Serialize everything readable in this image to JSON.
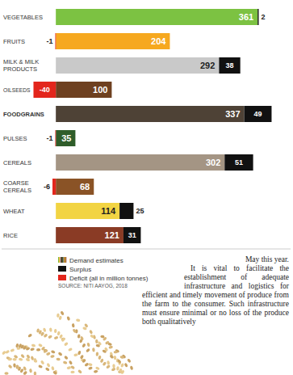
{
  "chart_data": {
    "type": "bar",
    "orientation": "horizontal",
    "stacked": true,
    "data_labels": true,
    "tick_labels": false,
    "grid": false,
    "legend": "bottom",
    "categories": [
      "VEGETABLES",
      "FRUITS",
      "MILK & MILK PRODUCTS",
      "OILSEEDS",
      "FOODGRAINS",
      "PULSES",
      "CEREALS",
      "COARSE CEREALS",
      "WHEAT",
      "RICE"
    ],
    "xlim": [
      -97,
      420
    ],
    "series": [
      {
        "name": "Demand estimates",
        "values": [
          361,
          204,
          292,
          100,
          337,
          35,
          302,
          68,
          114,
          121
        ],
        "colors": [
          "#7cc242",
          "#f6a81f",
          "#c9c9c9",
          "#6e4020",
          "#4e4236",
          "#2f5d2a",
          "#a49584",
          "#8a5326",
          "#f2d443",
          "#8a3b25"
        ]
      },
      {
        "name": "Surplus",
        "color": "#111111",
        "values": [
          2,
          null,
          38,
          null,
          49,
          null,
          51,
          null,
          25,
          31
        ]
      },
      {
        "name": "Deficit (all in million tonnes)",
        "color": "#e3261c",
        "values": [
          null,
          -1,
          null,
          -40,
          null,
          -1,
          null,
          -6,
          null,
          null
        ]
      }
    ],
    "source": "SOURCE: NITI AAYOG, 2018"
  },
  "article": {
    "paragraphs": [
      "May this year.",
      "It is vital to facilitate the establishment of adequate infrastructure and logistics for efficient and timely movement of produce from the farm to the consumer. Such infrastructure must ensure minimal or no loss of the produce both qualitatively"
    ]
  }
}
